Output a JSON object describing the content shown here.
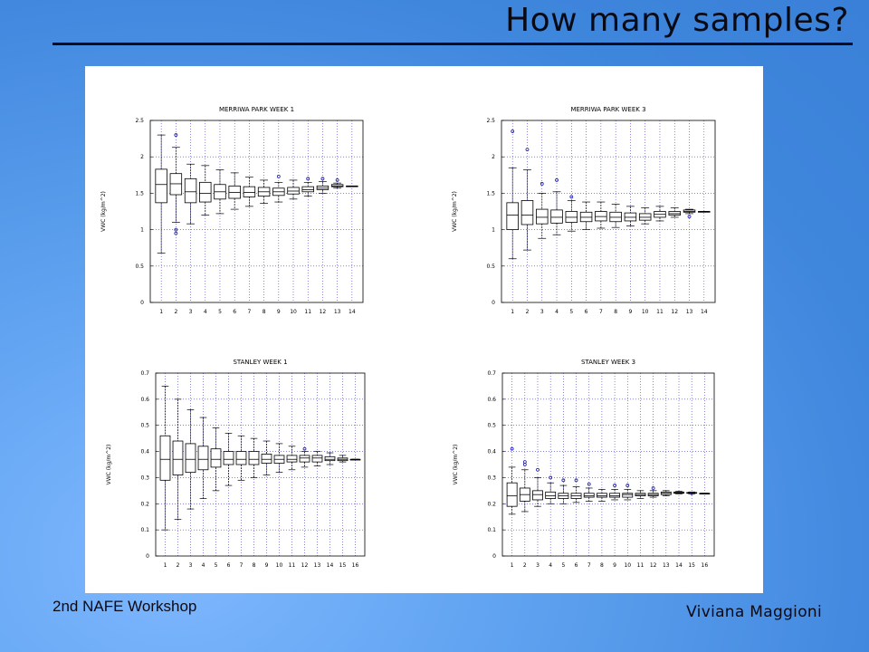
{
  "slide": {
    "title": "How many samples?",
    "footer_left": "2nd NAFE Workshop",
    "footer_right": "Viviana Maggioni"
  },
  "colors": {
    "outlier": "#1a1aa8",
    "box": "#000000",
    "grid": "#3b3bd0"
  },
  "chart_data": [
    {
      "type": "boxplot",
      "title": "MERRIWA PARK WEEK 1",
      "ylabel": "VWC (kg/m^2)",
      "ylim": [
        0,
        2.5
      ],
      "yticks": [
        0,
        0.5,
        1,
        1.5,
        2,
        2.5
      ],
      "categories": [
        "1",
        "2",
        "3",
        "4",
        "5",
        "6",
        "7",
        "8",
        "9",
        "10",
        "11",
        "12",
        "13",
        "14"
      ],
      "boxes": [
        {
          "min": 0.68,
          "q1": 1.37,
          "median": 1.62,
          "q3": 1.83,
          "max": 2.3
        },
        {
          "min": 1.1,
          "q1": 1.48,
          "median": 1.63,
          "q3": 1.77,
          "max": 2.13,
          "outliers": [
            2.3,
            1.0,
            0.95
          ]
        },
        {
          "min": 1.08,
          "q1": 1.37,
          "median": 1.52,
          "q3": 1.7,
          "max": 1.9
        },
        {
          "min": 1.2,
          "q1": 1.38,
          "median": 1.5,
          "q3": 1.65,
          "max": 1.88
        },
        {
          "min": 1.22,
          "q1": 1.42,
          "median": 1.52,
          "q3": 1.62,
          "max": 1.82
        },
        {
          "min": 1.28,
          "q1": 1.43,
          "median": 1.51,
          "q3": 1.6,
          "max": 1.78
        },
        {
          "min": 1.32,
          "q1": 1.45,
          "median": 1.51,
          "q3": 1.59,
          "max": 1.72
        },
        {
          "min": 1.36,
          "q1": 1.46,
          "median": 1.52,
          "q3": 1.58,
          "max": 1.68
        },
        {
          "min": 1.38,
          "q1": 1.47,
          "median": 1.52,
          "q3": 1.57,
          "max": 1.65,
          "outliers": [
            1.73
          ]
        },
        {
          "min": 1.42,
          "q1": 1.49,
          "median": 1.53,
          "q3": 1.58,
          "max": 1.68
        },
        {
          "min": 1.46,
          "q1": 1.52,
          "median": 1.55,
          "q3": 1.59,
          "max": 1.65,
          "outliers": [
            1.7
          ]
        },
        {
          "min": 1.5,
          "q1": 1.55,
          "median": 1.57,
          "q3": 1.6,
          "max": 1.66,
          "outliers": [
            1.7
          ]
        },
        {
          "min": 1.57,
          "q1": 1.59,
          "median": 1.6,
          "q3": 1.62,
          "max": 1.64,
          "outliers": [
            1.68
          ]
        },
        {
          "min": 1.6,
          "q1": 1.6,
          "median": 1.6,
          "q3": 1.6,
          "max": 1.6
        }
      ]
    },
    {
      "type": "boxplot",
      "title": "MERRIWA PARK WEEK 3",
      "ylabel": "VWC (kg/m^2)",
      "ylim": [
        0,
        2.5
      ],
      "yticks": [
        0,
        0.5,
        1,
        1.5,
        2,
        2.5
      ],
      "categories": [
        "1",
        "2",
        "3",
        "4",
        "5",
        "6",
        "7",
        "8",
        "9",
        "10",
        "11",
        "12",
        "13",
        "14"
      ],
      "boxes": [
        {
          "min": 0.6,
          "q1": 1.0,
          "median": 1.2,
          "q3": 1.37,
          "max": 1.85,
          "outliers": [
            2.35
          ]
        },
        {
          "min": 0.72,
          "q1": 1.07,
          "median": 1.2,
          "q3": 1.4,
          "max": 1.82,
          "outliers": [
            2.1
          ]
        },
        {
          "min": 0.88,
          "q1": 1.08,
          "median": 1.17,
          "q3": 1.28,
          "max": 1.5,
          "outliers": [
            1.63
          ]
        },
        {
          "min": 0.93,
          "q1": 1.09,
          "median": 1.17,
          "q3": 1.27,
          "max": 1.52,
          "outliers": [
            1.68
          ]
        },
        {
          "min": 0.98,
          "q1": 1.1,
          "median": 1.17,
          "q3": 1.25,
          "max": 1.4,
          "outliers": [
            1.45
          ]
        },
        {
          "min": 1.0,
          "q1": 1.11,
          "median": 1.17,
          "q3": 1.24,
          "max": 1.38
        },
        {
          "min": 1.02,
          "q1": 1.12,
          "median": 1.18,
          "q3": 1.25,
          "max": 1.38
        },
        {
          "min": 1.03,
          "q1": 1.11,
          "median": 1.17,
          "q3": 1.24,
          "max": 1.35
        },
        {
          "min": 1.05,
          "q1": 1.12,
          "median": 1.17,
          "q3": 1.23,
          "max": 1.32
        },
        {
          "min": 1.08,
          "q1": 1.13,
          "median": 1.17,
          "q3": 1.22,
          "max": 1.3
        },
        {
          "min": 1.12,
          "q1": 1.17,
          "median": 1.21,
          "q3": 1.25,
          "max": 1.32
        },
        {
          "min": 1.17,
          "q1": 1.2,
          "median": 1.22,
          "q3": 1.25,
          "max": 1.3
        },
        {
          "min": 1.22,
          "q1": 1.24,
          "median": 1.25,
          "q3": 1.27,
          "max": 1.28,
          "outliers": [
            1.18
          ]
        },
        {
          "min": 1.25,
          "q1": 1.25,
          "median": 1.25,
          "q3": 1.25,
          "max": 1.25
        }
      ]
    },
    {
      "type": "boxplot",
      "title": "STANLEY WEEK 1",
      "ylabel": "VWC (kg/m^2)",
      "ylim": [
        0,
        0.7
      ],
      "yticks": [
        0,
        0.1,
        0.2,
        0.3,
        0.4,
        0.5,
        0.6,
        0.7
      ],
      "categories": [
        "1",
        "2",
        "3",
        "4",
        "5",
        "6",
        "7",
        "8",
        "9",
        "10",
        "11",
        "12",
        "13",
        "14",
        "15",
        "16"
      ],
      "boxes": [
        {
          "min": 0.1,
          "q1": 0.29,
          "median": 0.37,
          "q3": 0.46,
          "max": 0.65
        },
        {
          "min": 0.14,
          "q1": 0.31,
          "median": 0.37,
          "q3": 0.44,
          "max": 0.6
        },
        {
          "min": 0.18,
          "q1": 0.32,
          "median": 0.37,
          "q3": 0.43,
          "max": 0.56
        },
        {
          "min": 0.22,
          "q1": 0.33,
          "median": 0.37,
          "q3": 0.42,
          "max": 0.53
        },
        {
          "min": 0.25,
          "q1": 0.34,
          "median": 0.37,
          "q3": 0.41,
          "max": 0.49
        },
        {
          "min": 0.27,
          "q1": 0.35,
          "median": 0.37,
          "q3": 0.4,
          "max": 0.47
        },
        {
          "min": 0.29,
          "q1": 0.35,
          "median": 0.37,
          "q3": 0.4,
          "max": 0.46
        },
        {
          "min": 0.3,
          "q1": 0.35,
          "median": 0.37,
          "q3": 0.4,
          "max": 0.45
        },
        {
          "min": 0.31,
          "q1": 0.355,
          "median": 0.37,
          "q3": 0.39,
          "max": 0.44
        },
        {
          "min": 0.32,
          "q1": 0.355,
          "median": 0.37,
          "q3": 0.385,
          "max": 0.43
        },
        {
          "min": 0.33,
          "q1": 0.36,
          "median": 0.37,
          "q3": 0.385,
          "max": 0.42
        },
        {
          "min": 0.34,
          "q1": 0.36,
          "median": 0.375,
          "q3": 0.385,
          "max": 0.4,
          "outliers": [
            0.41
          ]
        },
        {
          "min": 0.345,
          "q1": 0.36,
          "median": 0.375,
          "q3": 0.385,
          "max": 0.4
        },
        {
          "min": 0.35,
          "q1": 0.365,
          "median": 0.37,
          "q3": 0.38,
          "max": 0.395
        },
        {
          "min": 0.36,
          "q1": 0.365,
          "median": 0.37,
          "q3": 0.375,
          "max": 0.385
        },
        {
          "min": 0.37,
          "q1": 0.37,
          "median": 0.37,
          "q3": 0.37,
          "max": 0.37
        }
      ]
    },
    {
      "type": "boxplot",
      "title": "STANLEY WEEK 3",
      "ylabel": "VWC (kg/m^2)",
      "ylim": [
        0,
        0.7
      ],
      "yticks": [
        0,
        0.1,
        0.2,
        0.3,
        0.4,
        0.5,
        0.6,
        0.7
      ],
      "categories": [
        "1",
        "2",
        "3",
        "4",
        "5",
        "6",
        "7",
        "8",
        "9",
        "10",
        "11",
        "12",
        "13",
        "14",
        "15",
        "16"
      ],
      "boxes": [
        {
          "min": 0.16,
          "q1": 0.19,
          "median": 0.23,
          "q3": 0.28,
          "max": 0.34,
          "outliers": [
            0.41
          ]
        },
        {
          "min": 0.17,
          "q1": 0.21,
          "median": 0.235,
          "q3": 0.26,
          "max": 0.33,
          "outliers": [
            0.36,
            0.35
          ]
        },
        {
          "min": 0.19,
          "q1": 0.215,
          "median": 0.235,
          "q3": 0.25,
          "max": 0.3,
          "outliers": [
            0.33
          ]
        },
        {
          "min": 0.2,
          "q1": 0.22,
          "median": 0.23,
          "q3": 0.245,
          "max": 0.28,
          "outliers": [
            0.3
          ]
        },
        {
          "min": 0.2,
          "q1": 0.22,
          "median": 0.23,
          "q3": 0.24,
          "max": 0.27,
          "outliers": [
            0.29
          ]
        },
        {
          "min": 0.205,
          "q1": 0.22,
          "median": 0.23,
          "q3": 0.24,
          "max": 0.265,
          "outliers": [
            0.29
          ]
        },
        {
          "min": 0.21,
          "q1": 0.225,
          "median": 0.23,
          "q3": 0.24,
          "max": 0.26,
          "outliers": [
            0.275
          ]
        },
        {
          "min": 0.21,
          "q1": 0.225,
          "median": 0.23,
          "q3": 0.24,
          "max": 0.255
        },
        {
          "min": 0.215,
          "q1": 0.225,
          "median": 0.23,
          "q3": 0.24,
          "max": 0.255,
          "outliers": [
            0.27
          ]
        },
        {
          "min": 0.215,
          "q1": 0.225,
          "median": 0.235,
          "q3": 0.24,
          "max": 0.255,
          "outliers": [
            0.27
          ]
        },
        {
          "min": 0.22,
          "q1": 0.23,
          "median": 0.235,
          "q3": 0.24,
          "max": 0.25
        },
        {
          "min": 0.225,
          "q1": 0.23,
          "median": 0.235,
          "q3": 0.24,
          "max": 0.25,
          "outliers": [
            0.26
          ]
        },
        {
          "min": 0.23,
          "q1": 0.235,
          "median": 0.24,
          "q3": 0.245,
          "max": 0.25
        },
        {
          "min": 0.238,
          "q1": 0.24,
          "median": 0.242,
          "q3": 0.245,
          "max": 0.248
        },
        {
          "min": 0.238,
          "q1": 0.24,
          "median": 0.241,
          "q3": 0.243,
          "max": 0.245,
          "outliers": [
            0.24
          ]
        },
        {
          "min": 0.24,
          "q1": 0.24,
          "median": 0.24,
          "q3": 0.24,
          "max": 0.24
        }
      ]
    }
  ]
}
